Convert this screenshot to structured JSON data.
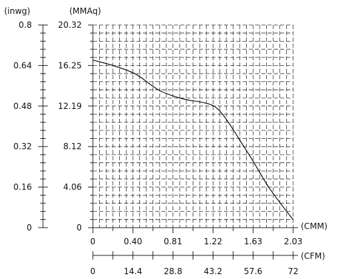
{
  "chart_data": {
    "type": "line",
    "title": "",
    "unit_labels": {
      "y_left": "(inwg)",
      "y_right": "(MMAq)",
      "x_top": "(CMM)",
      "x_bottom": "(CFM)"
    },
    "y_inwg_ticks": [
      "0",
      "0.16",
      "0.32",
      "0.48",
      "0.64",
      "0.8"
    ],
    "y_mmaq_ticks": [
      "0",
      "4.06",
      "8.12",
      "12.19",
      "16.25",
      "20.32"
    ],
    "x_cmm_ticks": [
      "0",
      "0.40",
      "0.81",
      "1.22",
      "1.63",
      "2.03"
    ],
    "x_cfm_ticks": [
      "0",
      "14.4",
      "28.8",
      "43.2",
      "57.6",
      "72"
    ],
    "x_range_cmm": [
      0,
      2.03
    ],
    "y_range_mmaq": [
      0,
      20.32
    ],
    "grid": true,
    "series": [
      {
        "x_cmm": [
          0.0,
          0.2,
          0.4,
          0.5,
          0.6,
          0.7,
          0.81,
          0.95,
          1.1,
          1.22,
          1.3,
          1.4,
          1.5,
          1.63,
          1.75,
          1.85,
          1.95,
          2.03
        ],
        "y_mmaq": [
          16.8,
          16.3,
          15.6,
          15.0,
          14.2,
          13.6,
          13.2,
          12.8,
          12.6,
          12.3,
          11.6,
          10.2,
          8.6,
          6.6,
          4.5,
          3.1,
          1.8,
          0.8
        ]
      }
    ]
  }
}
